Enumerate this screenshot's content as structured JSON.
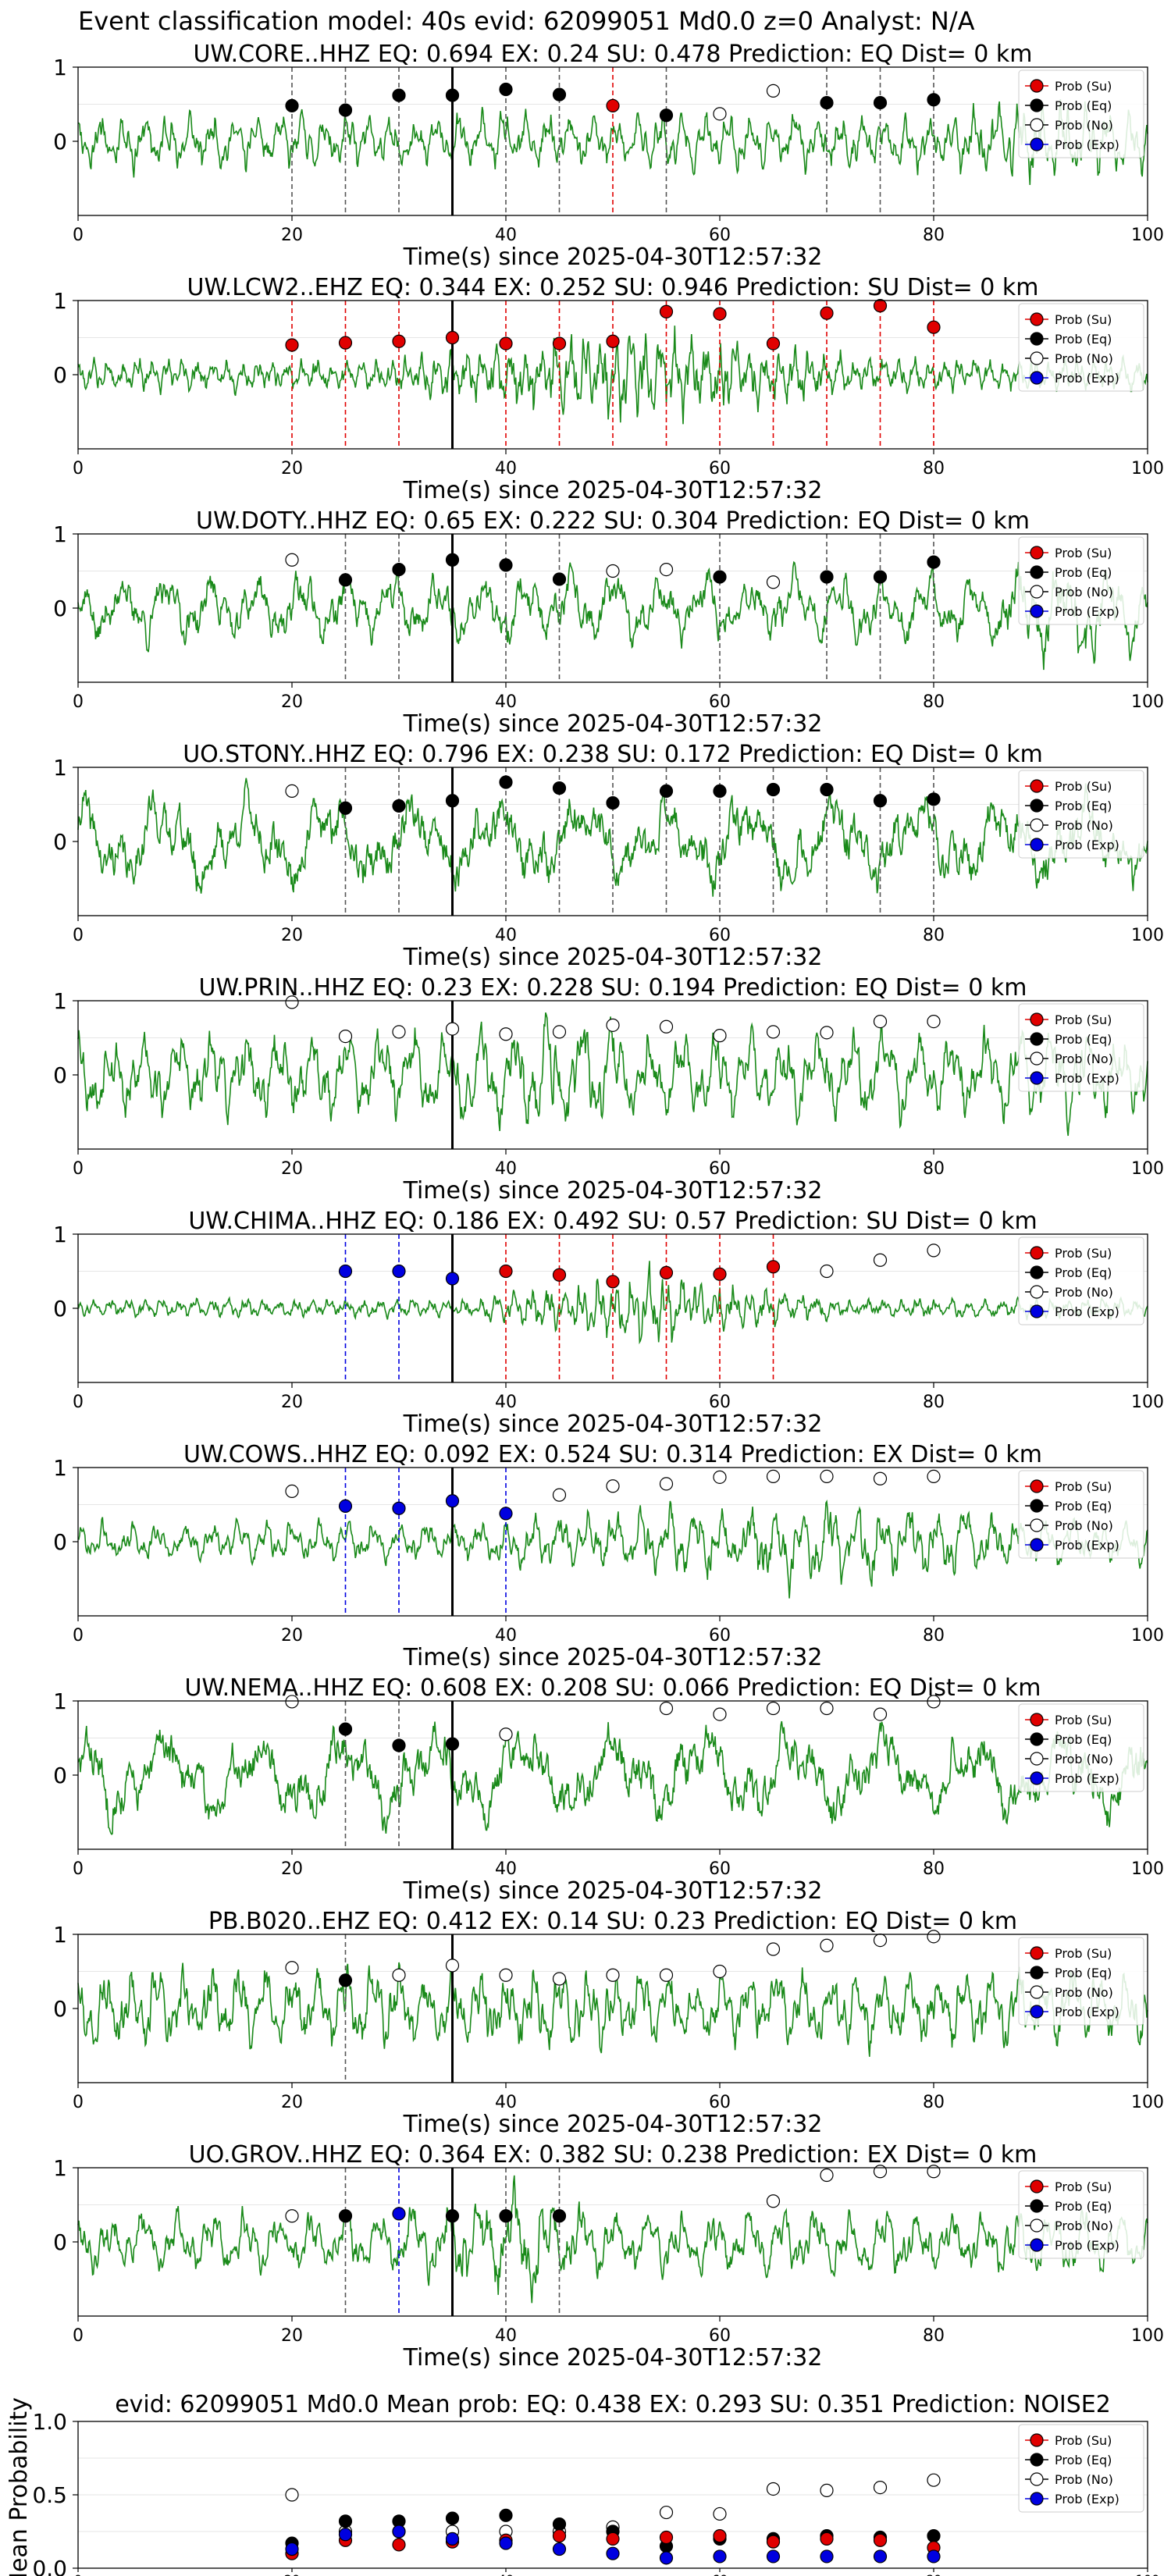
{
  "figure": {
    "suptitle": "Event classification model: 40s evid: 62099051 Md0.0 z=0 Analyst: N/A",
    "xlabel": "Time(s) since 2025-04-30T12:57:32",
    "legend": [
      "Prob (Su)",
      "Prob (Eq)",
      "Prob (No)",
      "Prob (Exp)"
    ],
    "colors": {
      "su": "#e00000",
      "eq": "#000000",
      "no": "#ffffff",
      "exp": "#0000e0",
      "trace": "#1a8a1a",
      "event_line": "#000000"
    },
    "x_ticks": [
      "0",
      "20",
      "40",
      "60",
      "80",
      "100"
    ],
    "y_ticks": [
      "1",
      "0"
    ],
    "mean_ylabel": "Mean Probability",
    "mean_y_ticks": [
      "1.0",
      "0.5",
      "0.0"
    ]
  },
  "chart_data": [
    {
      "type": "line",
      "title": "UW.CORE..HHZ   EQ: 0.694  EX: 0.24  SU: 0.478   Prediction: EQ    Dist= 0 km",
      "xlabel": "Time(s) since 2025-04-30T12:57:32",
      "xlim": [
        0,
        100
      ],
      "ylim": [
        -1,
        1
      ],
      "event_time": 35,
      "trace": {
        "seed": 11,
        "amp": 0.35,
        "freq": 6,
        "burst": {
          "start": 80,
          "end": 100,
          "gain": 1.8
        }
      },
      "windows": [
        20,
        25,
        30,
        35,
        40,
        45,
        50,
        55,
        60,
        65,
        70,
        75,
        80
      ],
      "predicted": [
        "eq",
        "eq",
        "eq",
        "eq",
        "eq",
        "eq",
        "su",
        "eq",
        "no",
        "no",
        "eq",
        "eq",
        "eq"
      ],
      "points": [
        0.48,
        0.42,
        0.62,
        0.62,
        0.7,
        0.63,
        0.48,
        0.35,
        0.37,
        0.68,
        0.52,
        0.52,
        0.56
      ]
    },
    {
      "type": "line",
      "title": "UW.LCW2..EHZ   EQ: 0.344  EX: 0.252  SU: 0.946   Prediction: SU    Dist= 0 km",
      "xlabel": "Time(s) since 2025-04-30T12:57:32",
      "xlim": [
        0,
        100
      ],
      "ylim": [
        -1,
        1
      ],
      "event_time": 35,
      "trace": {
        "seed": 23,
        "amp": 0.2,
        "freq": 9,
        "burst": {
          "start": 30,
          "end": 75,
          "gain": 3.5
        }
      },
      "windows": [
        20,
        25,
        30,
        35,
        40,
        45,
        50,
        55,
        60,
        65,
        70,
        75,
        80
      ],
      "predicted": [
        "su",
        "su",
        "su",
        "su",
        "su",
        "su",
        "su",
        "su",
        "su",
        "su",
        "su",
        "su",
        "su"
      ],
      "points": [
        0.4,
        0.43,
        0.45,
        0.5,
        0.42,
        0.42,
        0.45,
        0.85,
        0.82,
        0.42,
        0.83,
        0.93,
        0.64
      ]
    },
    {
      "type": "line",
      "title": "UW.DOTY..HHZ   EQ: 0.65  EX: 0.222  SU: 0.304   Prediction: EQ    Dist= 0 km",
      "xlabel": "Time(s) since 2025-04-30T12:57:32",
      "xlim": [
        0,
        100
      ],
      "ylim": [
        -1,
        1
      ],
      "event_time": 35,
      "trace": {
        "seed": 37,
        "amp": 0.45,
        "freq": 3,
        "burst": {
          "start": 85,
          "end": 100,
          "gain": 2.0
        }
      },
      "windows": [
        20,
        25,
        30,
        35,
        40,
        45,
        50,
        55,
        60,
        65,
        70,
        75,
        80
      ],
      "predicted": [
        "no",
        "eq",
        "eq",
        "eq",
        "eq",
        "eq",
        "no",
        "no",
        "eq",
        "no",
        "eq",
        "eq",
        "eq"
      ],
      "points": [
        0.65,
        0.38,
        0.52,
        0.65,
        0.58,
        0.39,
        0.5,
        0.52,
        0.42,
        0.35,
        0.42,
        0.42,
        0.62
      ]
    },
    {
      "type": "line",
      "title": "UO.STONY..HHZ   EQ: 0.796  EX: 0.238  SU: 0.172   Prediction: EQ    Dist= 0 km",
      "xlabel": "Time(s) since 2025-04-30T12:57:32",
      "xlim": [
        0,
        100
      ],
      "ylim": [
        -1,
        1
      ],
      "event_time": 35,
      "trace": {
        "seed": 41,
        "amp": 0.6,
        "freq": 1.6,
        "burst": {
          "start": 0,
          "end": 0,
          "gain": 1
        }
      },
      "windows": [
        20,
        25,
        30,
        35,
        40,
        45,
        50,
        55,
        60,
        65,
        70,
        75,
        80
      ],
      "predicted": [
        "no",
        "eq",
        "eq",
        "eq",
        "eq",
        "eq",
        "eq",
        "eq",
        "eq",
        "eq",
        "eq",
        "eq",
        "eq"
      ],
      "points": [
        0.68,
        0.45,
        0.48,
        0.55,
        0.8,
        0.72,
        0.52,
        0.68,
        0.68,
        0.7,
        0.7,
        0.55,
        0.57
      ]
    },
    {
      "type": "line",
      "title": "UW.PRIN..HHZ   EQ: 0.23  EX: 0.228  SU: 0.194   Prediction: EQ    Dist= 0 km",
      "xlabel": "Time(s) since 2025-04-30T12:57:32",
      "xlim": [
        0,
        100
      ],
      "ylim": [
        -1,
        1
      ],
      "event_time": 35,
      "trace": {
        "seed": 53,
        "amp": 0.55,
        "freq": 4,
        "burst": {
          "start": 35,
          "end": 55,
          "gain": 1.6
        }
      },
      "windows": [
        20,
        25,
        30,
        35,
        40,
        45,
        50,
        55,
        60,
        65,
        70,
        75,
        80
      ],
      "predicted": [
        "no",
        "no",
        "no",
        "no",
        "no",
        "no",
        "no",
        "no",
        "no",
        "no",
        "no",
        "no",
        "no"
      ],
      "points": [
        0.98,
        0.52,
        0.58,
        0.62,
        0.55,
        0.58,
        0.67,
        0.65,
        0.53,
        0.58,
        0.57,
        0.72,
        0.72
      ]
    },
    {
      "type": "line",
      "title": "UW.CHIMA..HHZ   EQ: 0.186  EX: 0.492  SU: 0.57   Prediction: SU    Dist= 0 km",
      "xlabel": "Time(s) since 2025-04-30T12:57:32",
      "xlim": [
        0,
        100
      ],
      "ylim": [
        -1,
        1
      ],
      "event_time": 35,
      "trace": {
        "seed": 61,
        "amp": 0.12,
        "freq": 8,
        "burst": {
          "start": 35,
          "end": 72,
          "gain": 4.5
        }
      },
      "windows": [
        20,
        25,
        30,
        35,
        40,
        45,
        50,
        55,
        60,
        65,
        70,
        75,
        80
      ],
      "predicted": [
        "none",
        "exp",
        "exp",
        "exp",
        "su",
        "su",
        "su",
        "su",
        "su",
        "su",
        "no",
        "no",
        "no"
      ],
      "points": [
        null,
        0.5,
        0.5,
        0.4,
        0.5,
        0.45,
        0.36,
        0.48,
        0.46,
        0.56,
        0.5,
        0.65,
        0.78
      ]
    },
    {
      "type": "line",
      "title": "UW.COWS..HHZ   EQ: 0.092  EX: 0.524  SU: 0.314   Prediction: EX    Dist= 0 km",
      "xlabel": "Time(s) since 2025-04-30T12:57:32",
      "xlim": [
        0,
        100
      ],
      "ylim": [
        -1,
        1
      ],
      "event_time": 35,
      "trace": {
        "seed": 73,
        "amp": 0.25,
        "freq": 5,
        "burst": {
          "start": 35,
          "end": 100,
          "gain": 2.5
        }
      },
      "windows": [
        20,
        25,
        30,
        35,
        40,
        45,
        50,
        55,
        60,
        65,
        70,
        75,
        80
      ],
      "predicted": [
        "no",
        "exp",
        "exp",
        "exp",
        "exp",
        "no",
        "no",
        "no",
        "no",
        "no",
        "no",
        "no",
        "no"
      ],
      "points": [
        0.68,
        0.48,
        0.45,
        0.55,
        0.38,
        0.63,
        0.75,
        0.78,
        0.87,
        0.88,
        0.88,
        0.85,
        0.88
      ]
    },
    {
      "type": "line",
      "title": "UW.NEMA..HHZ   EQ: 0.608  EX: 0.208  SU: 0.066   Prediction: EQ    Dist= 0 km",
      "xlabel": "Time(s) since 2025-04-30T12:57:32",
      "xlim": [
        0,
        100
      ],
      "ylim": [
        -1,
        1
      ],
      "event_time": 35,
      "trace": {
        "seed": 83,
        "amp": 0.6,
        "freq": 1.5,
        "burst": {
          "start": 0,
          "end": 0,
          "gain": 1
        }
      },
      "windows": [
        20,
        25,
        30,
        35,
        40,
        45,
        50,
        55,
        60,
        65,
        70,
        75,
        80
      ],
      "predicted": [
        "no",
        "eq",
        "eq",
        "eq",
        "no",
        "none",
        "none",
        "no",
        "no",
        "no",
        "no",
        "no",
        "no"
      ],
      "points": [
        1.0,
        0.62,
        0.4,
        0.42,
        0.55,
        null,
        null,
        0.9,
        0.82,
        0.9,
        0.9,
        0.82,
        1.0
      ]
    },
    {
      "type": "line",
      "title": "PB.B020..EHZ   EQ: 0.412  EX: 0.14  SU: 0.23   Prediction: EQ    Dist= 0 km",
      "xlabel": "Time(s) since 2025-04-30T12:57:32",
      "xlim": [
        0,
        100
      ],
      "ylim": [
        -1,
        1
      ],
      "event_time": 35,
      "trace": {
        "seed": 97,
        "amp": 0.5,
        "freq": 5,
        "burst": {
          "start": 0,
          "end": 0,
          "gain": 1
        }
      },
      "windows": [
        20,
        25,
        30,
        35,
        40,
        45,
        50,
        55,
        60,
        65,
        70,
        75,
        80
      ],
      "predicted": [
        "no",
        "eq",
        "no",
        "no",
        "no",
        "no",
        "no",
        "no",
        "no",
        "no",
        "no",
        "no",
        "no"
      ],
      "points": [
        0.55,
        0.38,
        0.45,
        0.58,
        0.45,
        0.4,
        0.45,
        0.45,
        0.5,
        0.8,
        0.85,
        0.92,
        0.97
      ]
    },
    {
      "type": "line",
      "title": "UO.GROV..HHZ   EQ: 0.364  EX: 0.382  SU: 0.238   Prediction: EX    Dist= 0 km",
      "xlabel": "Time(s) since 2025-04-30T12:57:32",
      "xlim": [
        0,
        100
      ],
      "ylim": [
        -1,
        1
      ],
      "event_time": 35,
      "trace": {
        "seed": 101,
        "amp": 0.4,
        "freq": 4,
        "burst": {
          "start": 30,
          "end": 50,
          "gain": 2.2
        }
      },
      "windows": [
        20,
        25,
        30,
        35,
        40,
        45,
        50,
        55,
        60,
        65,
        70,
        75,
        80
      ],
      "predicted": [
        "no",
        "eq",
        "exp",
        "eq",
        "eq",
        "eq",
        "none",
        "none",
        "none",
        "no",
        "no",
        "no",
        "no"
      ],
      "points": [
        0.35,
        0.35,
        0.38,
        0.35,
        0.35,
        0.35,
        null,
        null,
        null,
        0.55,
        0.9,
        0.95,
        0.95
      ]
    },
    {
      "type": "scatter",
      "title": "evid: 62099051  Md0.0   Mean prob:   EQ: 0.438  EX: 0.293  SU: 0.351   Prediction: NOISE2",
      "xlim": [
        0,
        100
      ],
      "ylim": [
        0,
        1
      ],
      "ylabel": "Mean Probability",
      "x": [
        20,
        25,
        30,
        35,
        40,
        45,
        50,
        55,
        60,
        65,
        70,
        75,
        80
      ],
      "series": [
        {
          "name": "Prob (Su)",
          "values": [
            0.1,
            0.19,
            0.16,
            0.18,
            0.19,
            0.22,
            0.2,
            0.21,
            0.22,
            0.18,
            0.2,
            0.19,
            0.14
          ]
        },
        {
          "name": "Prob (Eq)",
          "values": [
            0.17,
            0.32,
            0.32,
            0.34,
            0.36,
            0.3,
            0.25,
            0.15,
            0.2,
            0.2,
            0.22,
            0.21,
            0.22
          ]
        },
        {
          "name": "Prob (No)",
          "values": [
            0.5,
            0.25,
            0.25,
            0.25,
            0.25,
            0.25,
            0.28,
            0.38,
            0.37,
            0.54,
            0.53,
            0.55,
            0.6
          ]
        },
        {
          "name": "Prob (Exp)",
          "values": [
            0.13,
            0.23,
            0.25,
            0.2,
            0.17,
            0.13,
            0.1,
            0.07,
            0.08,
            0.08,
            0.08,
            0.08,
            0.08
          ]
        }
      ]
    }
  ]
}
